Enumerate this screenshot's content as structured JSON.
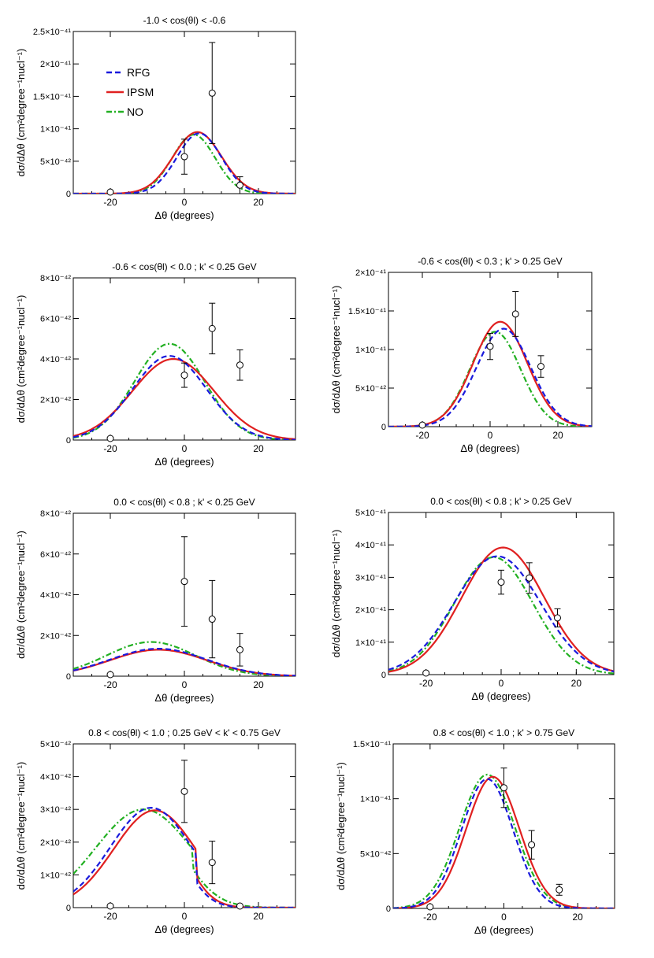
{
  "figure": {
    "xlabel": "Δθ (degrees)",
    "ylabel": "dσ/dΔθ (cm²degree⁻¹nucl⁻¹)",
    "legend": [
      {
        "name": "RFG",
        "color": "#1a1adc",
        "dash": "dash"
      },
      {
        "name": "IPSM",
        "color": "#e02020",
        "dash": "solid"
      },
      {
        "name": "NO",
        "color": "#22b022",
        "dash": "dashdot"
      }
    ]
  },
  "chart_data": [
    {
      "type": "line",
      "title": "-1.0 < cos(θl) < -0.6",
      "xlim": [
        -30,
        30
      ],
      "xticks": [
        -20,
        0,
        20
      ],
      "ylim": [
        0,
        2.5e-41
      ],
      "yticks": [
        "0",
        "5×10⁻⁴²",
        "1×10⁻⁴¹",
        "1.5×10⁻⁴¹",
        "2×10⁻⁴¹",
        "2.5×10⁻⁴¹"
      ],
      "ytick_values": [
        0,
        5e-42,
        1e-41,
        1.5e-41,
        2e-41,
        2.5e-41
      ],
      "legend_position": "top-left",
      "series": [
        {
          "name": "RFG",
          "peak": 9.3e-42,
          "mu": 4,
          "sigma": 6.0
        },
        {
          "name": "IPSM",
          "peak": 9.5e-42,
          "mu": 3.5,
          "sigma": 6.5
        },
        {
          "name": "NO",
          "peak": 9.1e-42,
          "mu": 2.5,
          "sigma": 5.8
        }
      ],
      "points": [
        {
          "x": -20,
          "y": 0,
          "err": 0
        },
        {
          "x": 0,
          "y": 5.7e-42,
          "err": 2.7e-42
        },
        {
          "x": 7.5,
          "y": 1.55e-41,
          "err": 7.8e-42
        },
        {
          "x": 15,
          "y": 1.3e-42,
          "err": 1.3e-42
        }
      ]
    },
    {
      "type": "line",
      "title": "-0.6 < cos(θl) < 0.0  ; k' < 0.25 GeV",
      "xlim": [
        -30,
        30
      ],
      "xticks": [
        -20,
        0,
        20
      ],
      "ylim": [
        0,
        8e-42
      ],
      "yticks": [
        "0",
        "2×10⁻⁴²",
        "4×10⁻⁴²",
        "6×10⁻⁴²",
        "8×10⁻⁴²"
      ],
      "ytick_values": [
        0,
        2e-42,
        4e-42,
        6e-42,
        8e-42
      ],
      "series": [
        {
          "name": "RFG",
          "peak": 4.15e-42,
          "mu": -4,
          "sigma": 10
        },
        {
          "name": "IPSM",
          "peak": 4e-42,
          "mu": -3,
          "sigma": 11
        },
        {
          "name": "NO",
          "peak": 4.75e-42,
          "mu": -4,
          "sigma": 9.5
        }
      ],
      "points": [
        {
          "x": -20,
          "y": 0,
          "err": 0
        },
        {
          "x": 0,
          "y": 3.2e-42,
          "err": 6e-43
        },
        {
          "x": 7.5,
          "y": 5.5e-42,
          "err": 1.25e-42
        },
        {
          "x": 15,
          "y": 3.7e-42,
          "err": 7.5e-43
        }
      ]
    },
    {
      "type": "line",
      "title": "-0.6 < cos(θl) < 0.3  ; k' > 0.25 GeV",
      "xlim": [
        -30,
        30
      ],
      "xticks": [
        -20,
        0,
        20
      ],
      "ylim": [
        0,
        2e-41
      ],
      "yticks": [
        "0",
        "5×10⁻⁴²",
        "1×10⁻⁴¹",
        "1.5×10⁻⁴¹",
        "2×10⁻⁴¹"
      ],
      "ytick_values": [
        0,
        5e-42,
        1e-41,
        1.5e-41,
        2e-41
      ],
      "series": [
        {
          "name": "RFG",
          "peak": 1.27e-41,
          "mu": 4,
          "sigma": 8
        },
        {
          "name": "IPSM",
          "peak": 1.36e-41,
          "mu": 3,
          "sigma": 8
        },
        {
          "name": "NO",
          "peak": 1.23e-41,
          "mu": 1.5,
          "sigma": 7.5
        }
      ],
      "points": [
        {
          "x": -20,
          "y": 0,
          "err": 0
        },
        {
          "x": 0,
          "y": 1.04e-41,
          "err": 1.7e-42
        },
        {
          "x": 7.5,
          "y": 1.46e-41,
          "err": 2.9e-42
        },
        {
          "x": 15,
          "y": 7.8e-42,
          "err": 1.4e-42
        }
      ]
    },
    {
      "type": "line",
      "title": "0.0 < cos(θl) < 0.8 ; k' < 0.25 GeV",
      "xlim": [
        -30,
        30
      ],
      "xticks": [
        -20,
        0,
        20
      ],
      "ylim": [
        0,
        8e-42
      ],
      "yticks": [
        "0",
        "2×10⁻⁴²",
        "4×10⁻⁴²",
        "6×10⁻⁴²",
        "8×10⁻⁴²"
      ],
      "ytick_values": [
        0,
        2e-42,
        4e-42,
        6e-42,
        8e-42
      ],
      "series": [
        {
          "name": "RFG",
          "peak": 1.35e-42,
          "mu": -7,
          "sigma": 13
        },
        {
          "name": "IPSM",
          "peak": 1.3e-42,
          "mu": -7,
          "sigma": 13
        },
        {
          "name": "NO",
          "peak": 1.68e-42,
          "mu": -9,
          "sigma": 12
        }
      ],
      "points": [
        {
          "x": -20,
          "y": 0,
          "err": 0
        },
        {
          "x": 0,
          "y": 4.65e-42,
          "err": 2.2e-42
        },
        {
          "x": 7.5,
          "y": 2.8e-42,
          "err": 1.9e-42
        },
        {
          "x": 15,
          "y": 1.3e-42,
          "err": 8e-43
        }
      ]
    },
    {
      "type": "line",
      "title": "0.0 < cos(θl) < 0.8 ; k' > 0.25 GeV",
      "xlim": [
        -30,
        30
      ],
      "xticks": [
        -20,
        0,
        20
      ],
      "ylim": [
        0,
        5e-41
      ],
      "yticks": [
        "0",
        "1×10⁻⁴¹",
        "2×10⁻⁴¹",
        "3×10⁻⁴¹",
        "4×10⁻⁴¹",
        "5×10⁻⁴¹"
      ],
      "ytick_values": [
        0,
        1e-41,
        2e-41,
        3e-41,
        4e-41,
        5e-41
      ],
      "series": [
        {
          "name": "RFG",
          "peak": 3.65e-41,
          "mu": -1,
          "sigma": 11.5
        },
        {
          "name": "IPSM",
          "peak": 3.92e-41,
          "mu": 0.5,
          "sigma": 11
        },
        {
          "name": "NO",
          "peak": 3.62e-41,
          "mu": -2,
          "sigma": 10.5
        }
      ],
      "points": [
        {
          "x": -20,
          "y": 0,
          "err": 0
        },
        {
          "x": 0,
          "y": 2.85e-41,
          "err": 3.7e-42
        },
        {
          "x": 7.5,
          "y": 2.98e-41,
          "err": 4.7e-42
        },
        {
          "x": 15,
          "y": 1.75e-41,
          "err": 2.8e-42
        }
      ]
    },
    {
      "type": "line",
      "title": "0.8 < cos(θl) < 1.0 ;  0.25 GeV < k' < 0.75 GeV",
      "xlim": [
        -30,
        30
      ],
      "xticks": [
        -20,
        0,
        20
      ],
      "ylim": [
        0,
        5e-42
      ],
      "yticks": [
        "0",
        "1×10⁻⁴²",
        "2×10⁻⁴²",
        "3×10⁻⁴²",
        "4×10⁻⁴²",
        "5×10⁻⁴²"
      ],
      "ytick_values": [
        0,
        1e-42,
        2e-42,
        3e-42,
        4e-42,
        5e-42
      ],
      "series": [
        {
          "name": "RFG",
          "peak": 3.05e-42,
          "mu": -9,
          "sigma": 11,
          "cutoff": 9,
          "right_sigma": 3.2
        },
        {
          "name": "IPSM",
          "peak": 2.97e-42,
          "mu": -8,
          "sigma": 11,
          "cutoff": 9,
          "right_sigma": 3.2
        },
        {
          "name": "NO",
          "peak": 3e-42,
          "mu": -11,
          "sigma": 13,
          "cutoff": 8,
          "right_sigma": 4.2
        }
      ],
      "points": [
        {
          "x": -20,
          "y": 0,
          "err": 0
        },
        {
          "x": 0,
          "y": 3.55e-42,
          "err": 9.5e-43
        },
        {
          "x": 7.5,
          "y": 1.38e-42,
          "err": 6.5e-43
        },
        {
          "x": 15,
          "y": 0,
          "err": 0
        }
      ]
    },
    {
      "type": "line",
      "title": "0.8 < cos(θl) < 1.0 ; k'  > 0.75 GeV",
      "xlim": [
        -30,
        30
      ],
      "xticks": [
        -20,
        0,
        20
      ],
      "ylim": [
        0,
        1.5e-41
      ],
      "yticks": [
        "0",
        "5×10⁻⁴²",
        "1×10⁻⁴¹",
        "1.5×10⁻⁴¹"
      ],
      "ytick_values": [
        0,
        5e-42,
        1e-41,
        1.5e-41
      ],
      "series": [
        {
          "name": "RFG",
          "peak": 1.18e-41,
          "mu": -4.5,
          "sigma": 7
        },
        {
          "name": "IPSM",
          "peak": 1.2e-41,
          "mu": -3,
          "sigma": 7.2
        },
        {
          "name": "NO",
          "peak": 1.22e-41,
          "mu": -4.5,
          "sigma": 7.5
        }
      ],
      "points": [
        {
          "x": -20,
          "y": 0,
          "err": 0
        },
        {
          "x": 0,
          "y": 1.1e-41,
          "err": 1.8e-42
        },
        {
          "x": 7.5,
          "y": 5.8e-42,
          "err": 1.3e-42
        },
        {
          "x": 15,
          "y": 1.7e-42,
          "err": 5e-43
        }
      ]
    }
  ]
}
